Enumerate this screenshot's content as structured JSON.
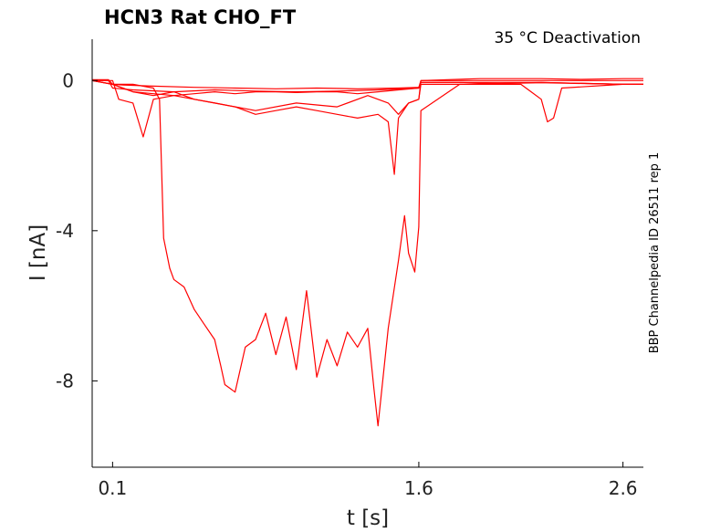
{
  "chart_data": {
    "type": "line",
    "title": "HCN3  Rat  CHO_FT",
    "condition": "35 °C  Deactivation",
    "side_label": "BBP Channelpedia ID 26511 rep 1",
    "xlabel": "t [s]",
    "ylabel": "I [nA]",
    "xlim": [
      0.0,
      2.7
    ],
    "ylim": [
      -10.3,
      1.1
    ],
    "xticks": [
      0.1,
      1.6,
      2.6
    ],
    "xtick_labels": [
      "0.1",
      "1.6",
      "2.6"
    ],
    "yticks": [
      0,
      -4,
      -8
    ],
    "ytick_labels": [
      "0",
      "-4",
      "-8"
    ],
    "grid": false,
    "series_color": "#ff0000",
    "series": [
      {
        "x": [
          0.0,
          0.08,
          0.1,
          0.15,
          0.3,
          0.5,
          0.7,
          0.9,
          1.1,
          1.3,
          1.5,
          1.6,
          1.61,
          1.9,
          2.2,
          2.4,
          2.6,
          2.7
        ],
        "y": [
          0.02,
          0.02,
          -0.1,
          -0.12,
          -0.15,
          -0.18,
          -0.2,
          -0.22,
          -0.2,
          -0.22,
          -0.2,
          -0.18,
          0.0,
          0.05,
          0.05,
          0.03,
          0.05,
          0.05
        ]
      },
      {
        "x": [
          0.0,
          0.08,
          0.1,
          0.2,
          0.4,
          0.6,
          0.8,
          1.0,
          1.2,
          1.4,
          1.6,
          1.61,
          1.8,
          2.0,
          2.2,
          2.4,
          2.6,
          2.7
        ],
        "y": [
          0.0,
          0.0,
          -0.2,
          -0.25,
          -0.3,
          -0.25,
          -0.28,
          -0.3,
          -0.28,
          -0.25,
          -0.2,
          -0.05,
          -0.05,
          -0.08,
          -0.06,
          -0.08,
          -0.1,
          -0.1
        ]
      },
      {
        "x": [
          0.0,
          0.1,
          0.13,
          0.2,
          0.25,
          0.3,
          0.4,
          0.6,
          0.8,
          1.0,
          1.2,
          1.35,
          1.45,
          1.5,
          1.55,
          1.6,
          1.61,
          1.9,
          2.1,
          2.15,
          2.2,
          2.23,
          2.26,
          2.3,
          2.6,
          2.7
        ],
        "y": [
          0.0,
          0.0,
          -0.5,
          -0.6,
          -1.5,
          -0.5,
          -0.4,
          -0.6,
          -0.8,
          -0.6,
          -0.7,
          -0.4,
          -0.6,
          -0.9,
          -0.6,
          -0.5,
          -0.1,
          -0.1,
          -0.1,
          -0.3,
          -0.5,
          -1.1,
          -1.0,
          -0.2,
          -0.1,
          -0.1
        ]
      },
      {
        "x": [
          0.0,
          0.1,
          0.2,
          0.3,
          0.4,
          0.5,
          0.6,
          0.7,
          0.8,
          0.9,
          1.0,
          1.1,
          1.2,
          1.3,
          1.4,
          1.45,
          1.48,
          1.5,
          1.55,
          1.6,
          1.61,
          2.0,
          2.4,
          2.7
        ],
        "y": [
          0.0,
          -0.1,
          -0.3,
          -0.4,
          -0.3,
          -0.5,
          -0.6,
          -0.7,
          -0.9,
          -0.8,
          -0.7,
          -0.8,
          -0.9,
          -1.0,
          -0.9,
          -1.1,
          -2.5,
          -1.0,
          -0.6,
          -0.5,
          0.0,
          0.0,
          0.0,
          0.0
        ]
      },
      {
        "x": [
          0.0,
          0.1,
          0.15,
          0.2,
          0.3,
          0.4,
          0.5,
          0.6,
          0.7,
          0.8,
          0.9,
          1.0,
          1.1,
          1.2,
          1.3,
          1.4,
          1.5,
          1.6,
          1.61,
          1.8,
          2.2,
          2.6,
          2.7
        ],
        "y": [
          0.0,
          -0.1,
          -0.2,
          -0.3,
          -0.35,
          -0.4,
          -0.35,
          -0.3,
          -0.35,
          -0.3,
          -0.3,
          -0.32,
          -0.3,
          -0.3,
          -0.35,
          -0.3,
          -0.25,
          -0.2,
          -0.05,
          -0.05,
          -0.05,
          -0.1,
          -0.1
        ]
      },
      {
        "x": [
          0.0,
          0.1,
          0.2,
          0.3,
          0.33,
          0.35,
          0.38,
          0.4,
          0.45,
          0.5,
          0.55,
          0.6,
          0.63,
          0.65,
          0.7,
          0.75,
          0.8,
          0.85,
          0.9,
          0.95,
          1.0,
          1.05,
          1.1,
          1.15,
          1.2,
          1.25,
          1.3,
          1.35,
          1.38,
          1.4,
          1.45,
          1.5,
          1.53,
          1.55,
          1.58,
          1.6,
          1.61,
          1.8,
          2.2,
          2.6,
          2.7
        ],
        "y": [
          0.0,
          -0.1,
          -0.1,
          -0.2,
          -0.5,
          -4.2,
          -5.0,
          -5.3,
          -5.5,
          -6.1,
          -6.5,
          -6.9,
          -7.6,
          -8.1,
          -8.3,
          -7.1,
          -6.9,
          -6.2,
          -7.3,
          -6.3,
          -7.7,
          -5.6,
          -7.9,
          -6.9,
          -7.6,
          -6.7,
          -7.1,
          -6.6,
          -8.2,
          -9.2,
          -6.6,
          -4.8,
          -3.6,
          -4.6,
          -5.1,
          -3.9,
          -0.8,
          -0.1,
          -0.05,
          -0.1,
          -0.1
        ]
      }
    ]
  }
}
